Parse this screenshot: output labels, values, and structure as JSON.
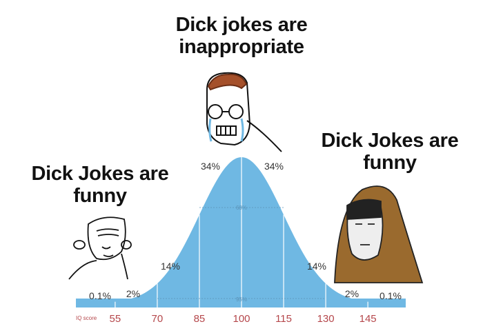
{
  "captions": {
    "top": "Dick jokes are inappropriate",
    "left": "Dick Jokes are funny",
    "right": "Dick Jokes are funny"
  },
  "chart": {
    "axis_label": "IQ score",
    "ticks": [
      "55",
      "70",
      "85",
      "100",
      "115",
      "130",
      "145"
    ],
    "percentages": {
      "far_left": "0.1%",
      "left_tail": "2%",
      "left_mid": "14%",
      "left_center": "34%",
      "right_center": "34%",
      "right_mid": "14%",
      "right_tail": "2%",
      "far_right": "0.1%"
    },
    "inner_labels": {
      "one_sd": "68%",
      "two_sd": "95%"
    },
    "mean": 100,
    "sd": 15
  },
  "colors": {
    "curve": "#6fb8e3",
    "ticks": "#b5474b",
    "hood": "#9a6a2e"
  }
}
